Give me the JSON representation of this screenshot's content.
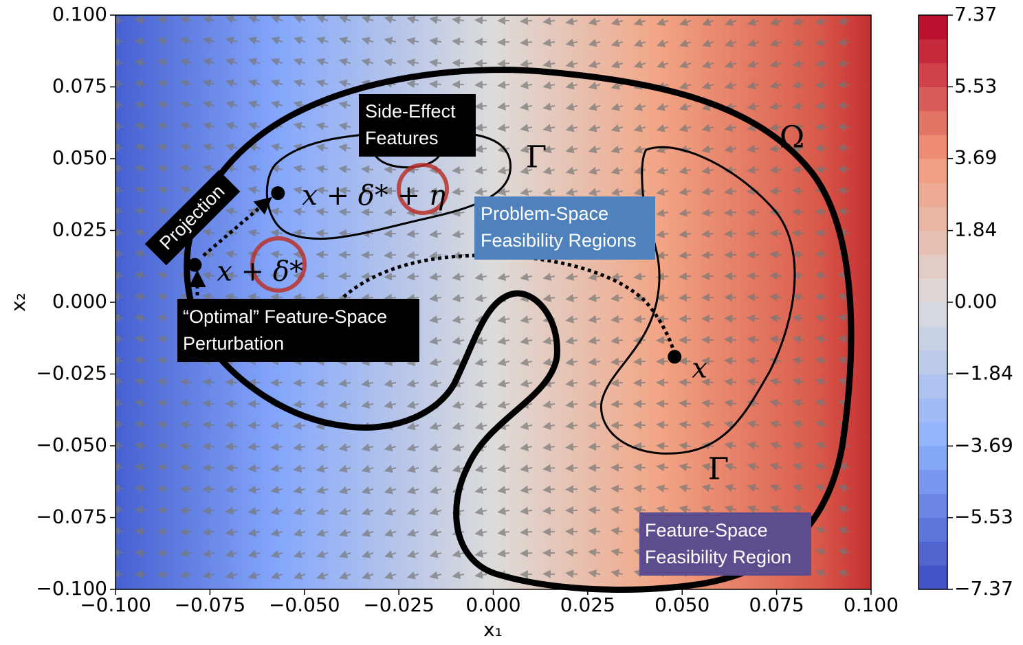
{
  "chart_data": {
    "type": "contour",
    "xlabel": "x₁",
    "ylabel": "x₂",
    "xlim": [
      -0.1,
      0.1
    ],
    "ylim": [
      -0.1,
      0.1
    ],
    "xticks": [
      {
        "value": -0.1,
        "label": "−0.100"
      },
      {
        "value": -0.075,
        "label": "−0.075"
      },
      {
        "value": -0.05,
        "label": "−0.050"
      },
      {
        "value": -0.025,
        "label": "−0.025"
      },
      {
        "value": 0,
        "label": "0.000"
      },
      {
        "value": 0.025,
        "label": "0.025"
      },
      {
        "value": 0.05,
        "label": "0.050"
      },
      {
        "value": 0.075,
        "label": "0.075"
      },
      {
        "value": 0.1,
        "label": "0.100"
      }
    ],
    "yticks": [
      {
        "value": -0.1,
        "label": "−0.100"
      },
      {
        "value": -0.075,
        "label": "−0.075"
      },
      {
        "value": -0.05,
        "label": "−0.050"
      },
      {
        "value": -0.025,
        "label": "−0.025"
      },
      {
        "value": 0,
        "label": "0.000"
      },
      {
        "value": 0.025,
        "label": "0.025"
      },
      {
        "value": 0.05,
        "label": "0.050"
      },
      {
        "value": 0.075,
        "label": "0.075"
      },
      {
        "value": 0.1,
        "label": "0.100"
      }
    ],
    "colorbar": {
      "lim": [
        -7.37,
        7.37
      ],
      "ticks": [
        7.37,
        5.53,
        3.69,
        1.84,
        {
          "value": 0,
          "label": "0.00"
        },
        {
          "value": -1.84,
          "label": "−1.84"
        },
        {
          "value": -3.69,
          "label": "−3.69"
        },
        {
          "value": -5.53,
          "label": "−5.53"
        },
        {
          "value": -7.37,
          "label": "−7.37"
        }
      ]
    },
    "points": [
      {
        "label": "x + δ* + η",
        "x": -0.057,
        "y": 0.038
      },
      {
        "label": "x + δ*",
        "x": -0.079,
        "y": 0.013
      },
      {
        "label": "x",
        "x": 0.048,
        "y": -0.019
      }
    ],
    "region_labels": [
      "Ω",
      "Γ",
      "Γ"
    ],
    "annotations": {
      "side_effect": [
        "Side-Effect",
        "Features"
      ],
      "projection": "Projection",
      "problem_space": [
        "Problem-Space",
        "Feasibility Regions"
      ],
      "optimal": [
        "“Optimal” Feature-Space",
        "Perturbation"
      ],
      "feature_space": [
        "Feature-Space",
        "Feasibility Region"
      ]
    }
  }
}
